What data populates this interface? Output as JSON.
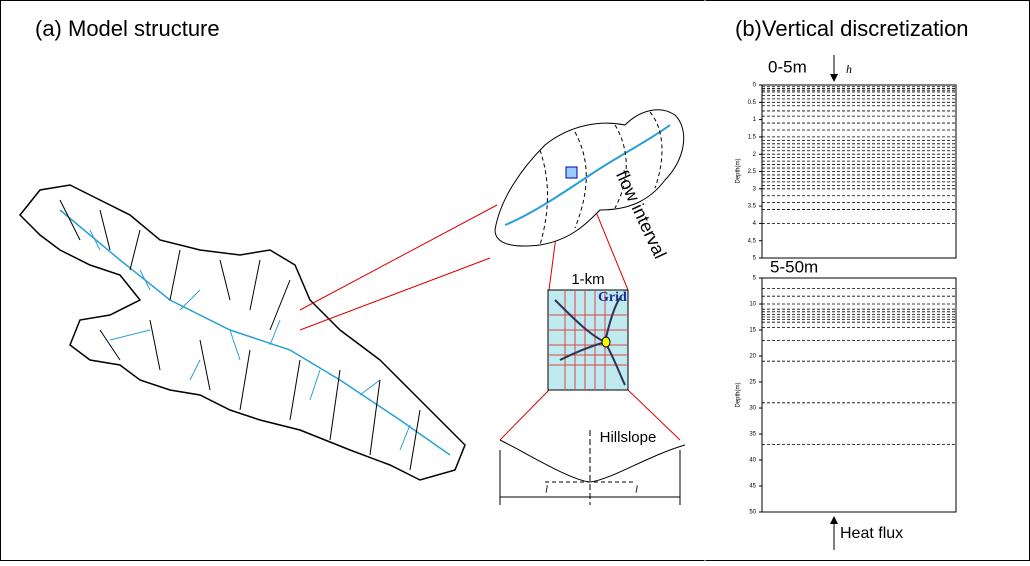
{
  "left": {
    "title": "(a) Model structure",
    "flow_label": "flow interval",
    "grid_size": "1-km",
    "grid_label": "Grid",
    "hillslope_label": "Hillslope",
    "length_labels": [
      "l",
      "l"
    ]
  },
  "right": {
    "title": "(b)Vertical discretization",
    "top_panel": {
      "label": "0-5m",
      "arrow_label": "h",
      "axis_label": "Depth(m)",
      "ylim": [
        0,
        5
      ],
      "yticks": [
        0,
        0.5,
        1,
        1.5,
        2,
        2.5,
        3,
        3.5,
        4,
        4.5,
        5
      ],
      "layers": [
        0.05,
        0.1,
        0.15,
        0.2,
        0.3,
        0.4,
        0.5,
        0.6,
        0.75,
        0.9,
        1.1,
        1.3,
        1.5,
        1.6,
        1.7,
        1.8,
        1.9,
        2.0,
        2.1,
        2.2,
        2.3,
        2.4,
        2.5,
        2.6,
        2.7,
        2.8,
        2.9,
        3.0,
        3.2,
        3.4,
        3.6,
        4.0
      ]
    },
    "bottom_panel": {
      "label": "5-50m",
      "axis_label": "Depth(m)",
      "ylim": [
        5,
        50
      ],
      "yticks": [
        5,
        10,
        15,
        20,
        25,
        30,
        35,
        40,
        45,
        50
      ],
      "layers": [
        7,
        8.5,
        10,
        11,
        11.5,
        12,
        12.5,
        13,
        13.5,
        14.5,
        17,
        21,
        29,
        37
      ]
    },
    "bottom_label": "Heat flux"
  }
}
